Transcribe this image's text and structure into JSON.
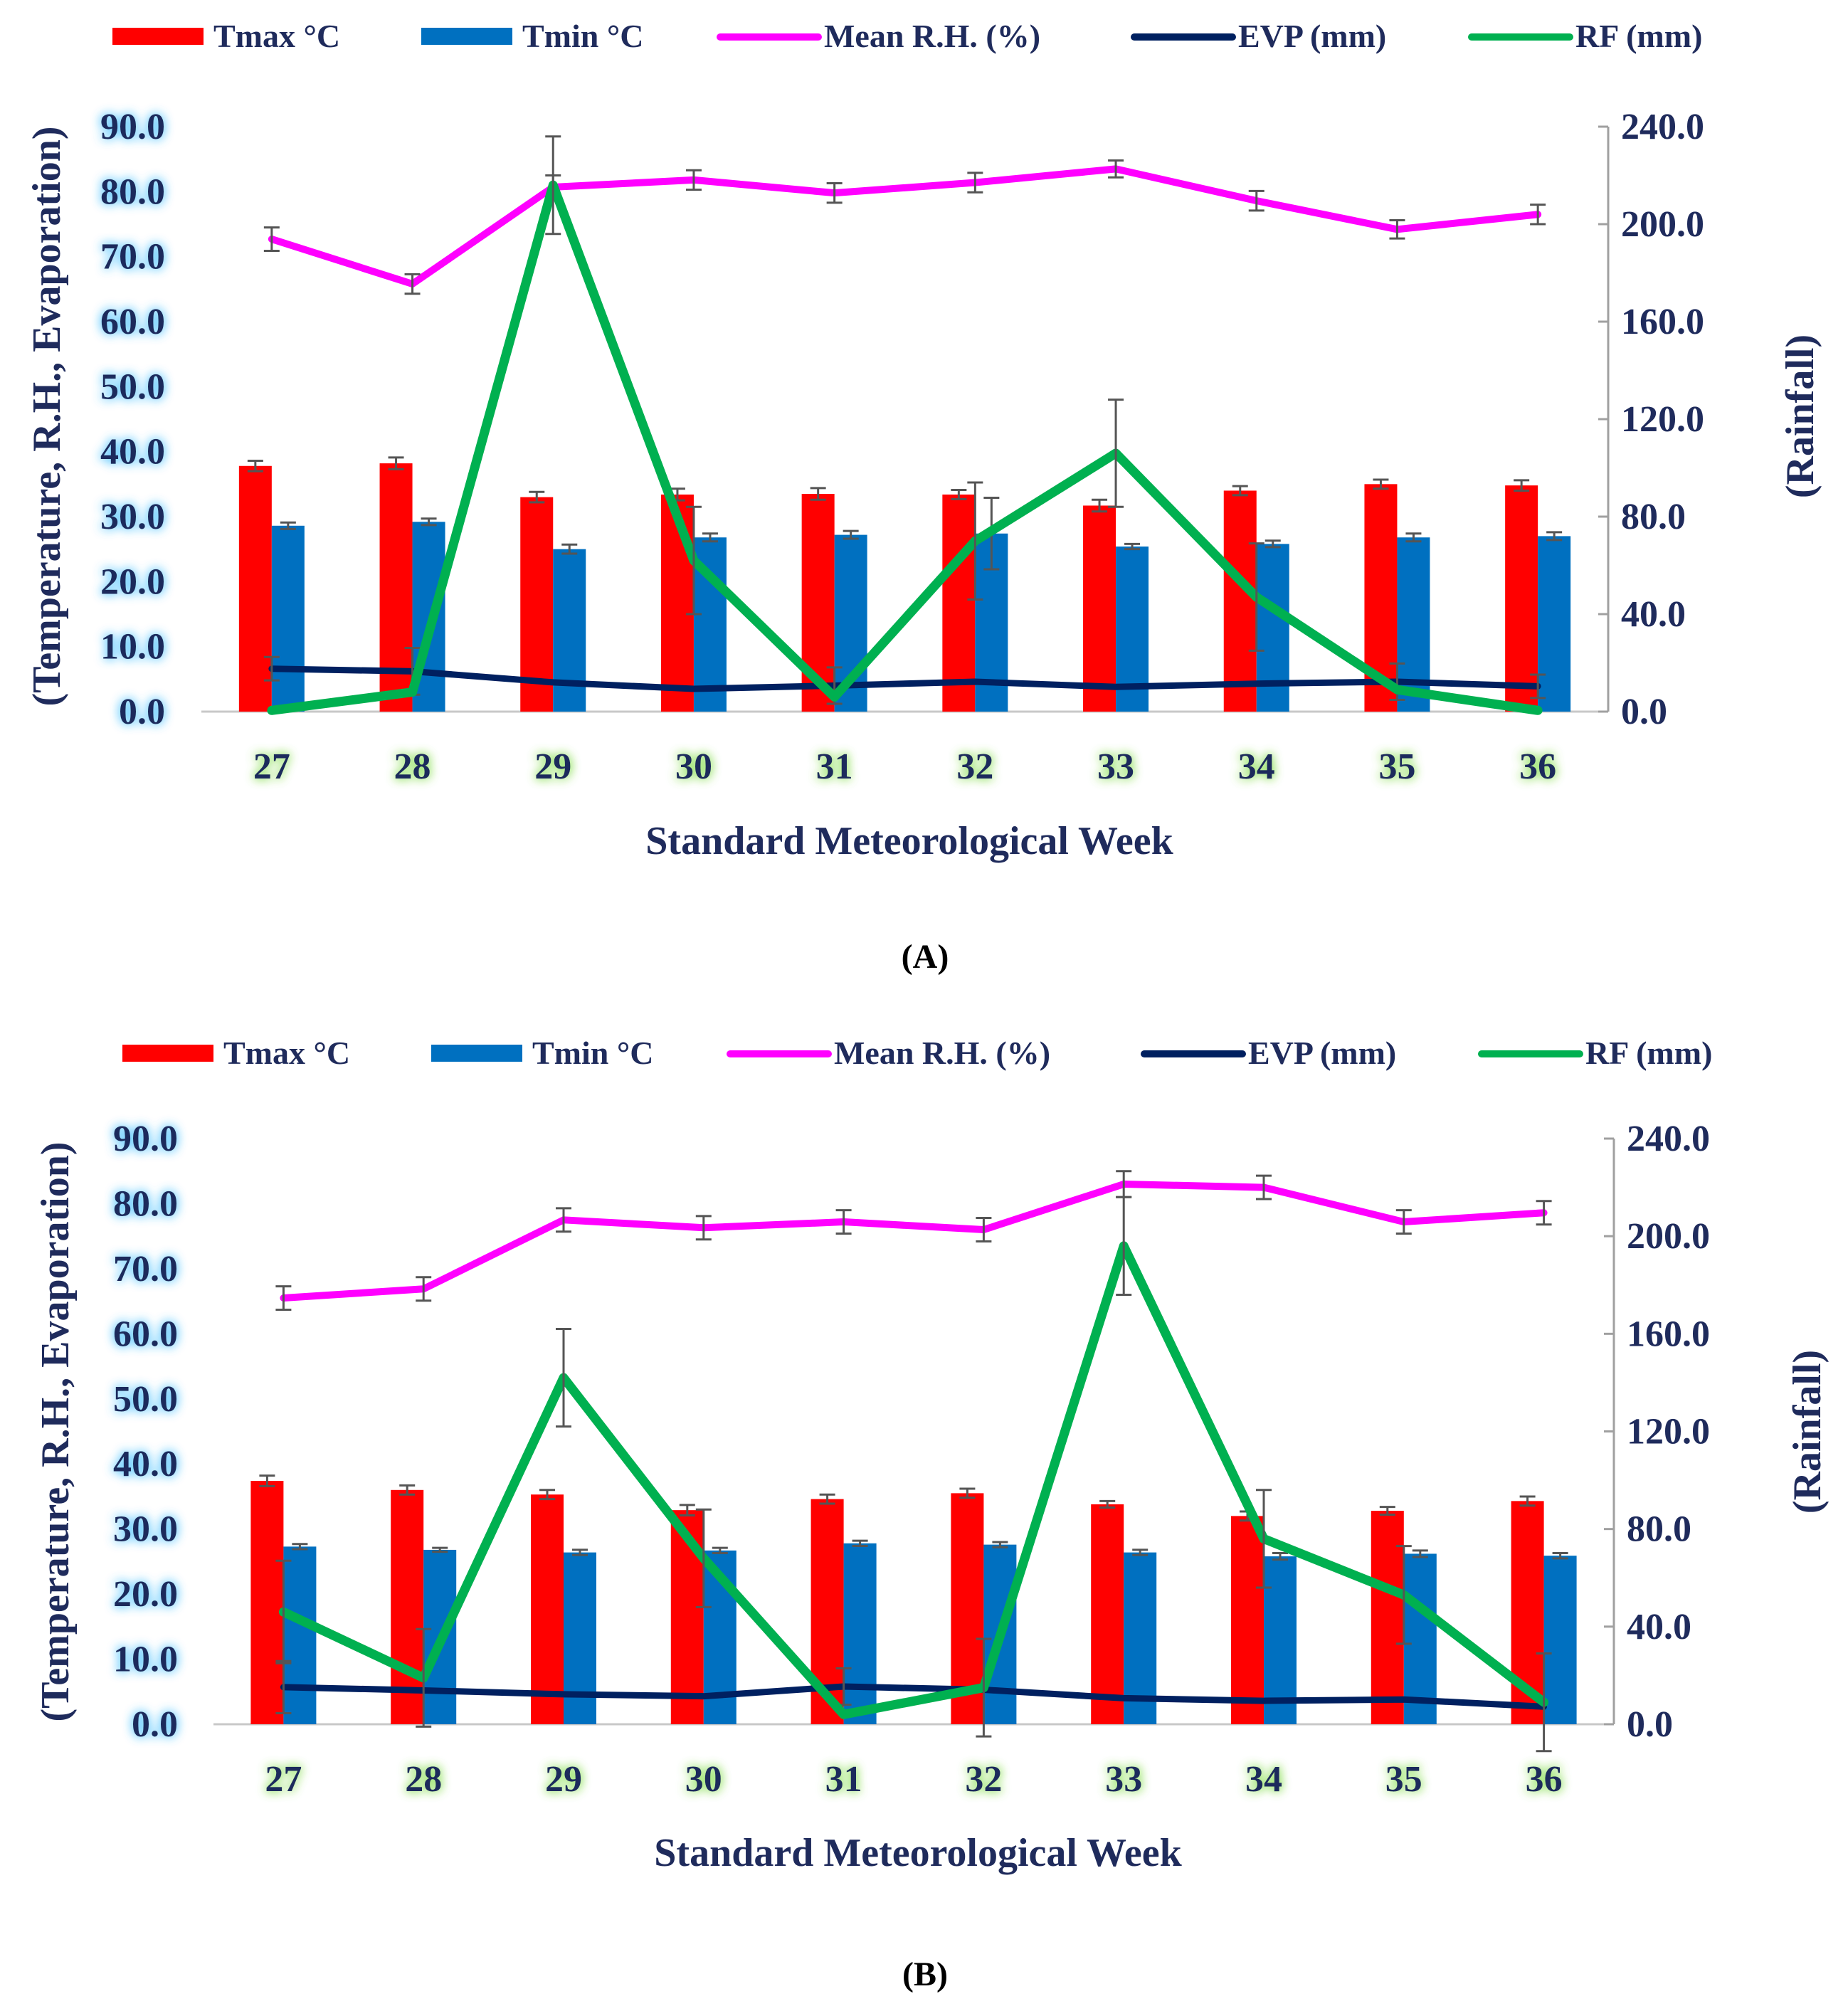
{
  "chart_data": [
    {
      "panel": "A",
      "type": "bar",
      "categories": [
        "27",
        "28",
        "29",
        "30",
        "31",
        "32",
        "33",
        "34",
        "35",
        "36"
      ],
      "xlabel": "Standard Meteorological Week",
      "ylabel_left": "(Temperature, R.H., Evaporation)",
      "ylabel_right": "(Rainfall)",
      "ylim_left": [
        0,
        90
      ],
      "ylim_right": [
        0,
        240
      ],
      "yticks_left": [
        "0.0",
        "10.0",
        "20.0",
        "30.0",
        "40.0",
        "50.0",
        "60.0",
        "70.0",
        "80.0",
        "90.0"
      ],
      "yticks_right": [
        "0.0",
        "40.0",
        "80.0",
        "120.0",
        "160.0",
        "200.0",
        "240.0"
      ],
      "legend": [
        "Tmax °C",
        "Tmin °C",
        "Mean R.H. (%)",
        "EVP (mm)",
        "RF (mm)"
      ],
      "colors": {
        "tmax": "#ff0000",
        "tmin": "#0070c0",
        "rh": "#ff00ff",
        "evp": "#002060",
        "rf": "#00b050"
      },
      "series": [
        {
          "name": "Tmax °C",
          "kind": "bar",
          "axis": "left",
          "values": [
            37.8,
            38.2,
            33.0,
            33.4,
            33.5,
            33.4,
            31.7,
            34.0,
            35.0,
            34.8
          ],
          "errors": [
            0.8,
            0.9,
            0.8,
            0.9,
            0.9,
            0.7,
            0.9,
            0.7,
            0.7,
            0.8
          ]
        },
        {
          "name": "Tmin °C",
          "kind": "bar",
          "axis": "left",
          "values": [
            28.6,
            29.2,
            25.0,
            26.8,
            27.2,
            27.4,
            25.4,
            25.8,
            26.8,
            27.0
          ],
          "errors": [
            0.5,
            0.5,
            0.7,
            0.6,
            0.6,
            5.5,
            0.4,
            0.5,
            0.6,
            0.6
          ]
        },
        {
          "name": "Mean R.H. (%)",
          "kind": "line",
          "axis": "left",
          "values": [
            72.7,
            65.8,
            80.7,
            81.8,
            79.8,
            81.4,
            83.5,
            78.6,
            74.2,
            76.5
          ],
          "errors": [
            1.8,
            1.5,
            1.8,
            1.5,
            1.5,
            1.5,
            1.3,
            1.5,
            1.4,
            1.5
          ]
        },
        {
          "name": "EVP (mm)",
          "kind": "line",
          "axis": "left",
          "values": [
            6.6,
            6.2,
            4.5,
            3.5,
            4.0,
            4.6,
            3.8,
            4.3,
            4.6,
            3.9
          ],
          "errors": [
            1.8,
            3.6,
            0,
            0,
            2.8,
            0,
            0,
            0,
            2.8,
            1.8
          ]
        },
        {
          "name": "RF (mm)",
          "kind": "line",
          "axis": "right",
          "values": [
            0.5,
            8.0,
            216.0,
            62.0,
            6.0,
            70.0,
            106.0,
            47.0,
            9.0,
            0.5
          ],
          "errors": [
            0,
            0,
            20,
            22,
            0,
            24,
            22,
            22,
            0,
            0
          ]
        }
      ]
    },
    {
      "panel": "B",
      "type": "bar",
      "categories": [
        "27",
        "28",
        "29",
        "30",
        "31",
        "32",
        "33",
        "34",
        "35",
        "36"
      ],
      "xlabel": "Standard Meteorological Week",
      "ylabel_left": "(Temperature, R.H., Evaporation)",
      "ylabel_right": "(Rainfall)",
      "ylim_left": [
        0,
        90
      ],
      "ylim_right": [
        0,
        240
      ],
      "yticks_left": [
        "0.0",
        "10.0",
        "20.0",
        "30.0",
        "40.0",
        "50.0",
        "60.0",
        "70.0",
        "80.0",
        "90.0"
      ],
      "yticks_right": [
        "0.0",
        "40.0",
        "80.0",
        "120.0",
        "160.0",
        "200.0",
        "240.0"
      ],
      "legend": [
        "Tmax °C",
        "Tmin °C",
        "Mean R.H. (%)",
        "EVP (mm)",
        "RF (mm)"
      ],
      "colors": {
        "tmax": "#ff0000",
        "tmin": "#0070c0",
        "rh": "#ff00ff",
        "evp": "#002060",
        "rf": "#00b050"
      },
      "series": [
        {
          "name": "Tmax °C",
          "kind": "bar",
          "axis": "left",
          "values": [
            37.4,
            36.0,
            35.3,
            32.9,
            34.6,
            35.5,
            33.8,
            32.0,
            32.8,
            34.3
          ],
          "errors": [
            0.8,
            0.7,
            0.7,
            0.8,
            0.7,
            0.7,
            0.5,
            0.7,
            0.6,
            0.7
          ]
        },
        {
          "name": "Tmin °C",
          "kind": "bar",
          "axis": "left",
          "values": [
            27.3,
            26.8,
            26.4,
            26.7,
            27.8,
            27.6,
            26.4,
            25.8,
            26.2,
            25.9
          ],
          "errors": [
            0.4,
            0.3,
            0.4,
            0.4,
            0.4,
            0.4,
            0.4,
            0.5,
            0.5,
            0.4
          ]
        },
        {
          "name": "Mean R.H. (%)",
          "kind": "line",
          "axis": "left",
          "values": [
            65.5,
            66.9,
            77.5,
            76.3,
            77.2,
            76.0,
            83.0,
            82.5,
            77.2,
            78.6
          ],
          "errors": [
            1.8,
            1.8,
            1.8,
            1.8,
            1.8,
            1.8,
            2.0,
            1.8,
            1.8,
            1.8
          ]
        },
        {
          "name": "EVP (mm)",
          "kind": "line",
          "axis": "left",
          "values": [
            5.7,
            5.2,
            4.6,
            4.3,
            5.8,
            5.3,
            4.0,
            3.6,
            3.8,
            2.7
          ],
          "errors": [
            4.0,
            0,
            0,
            0,
            2.8,
            0,
            0,
            0,
            0,
            0
          ]
        },
        {
          "name": "RF (mm)",
          "kind": "line",
          "axis": "right",
          "values": [
            46.0,
            19.0,
            142.0,
            68.0,
            4.0,
            15.0,
            196.0,
            76.0,
            53.0,
            9.0
          ],
          "errors": [
            21,
            20,
            20,
            20,
            0,
            20,
            20,
            20,
            20,
            20
          ]
        }
      ]
    }
  ],
  "panel_labels": [
    "(A)",
    "(B)"
  ]
}
